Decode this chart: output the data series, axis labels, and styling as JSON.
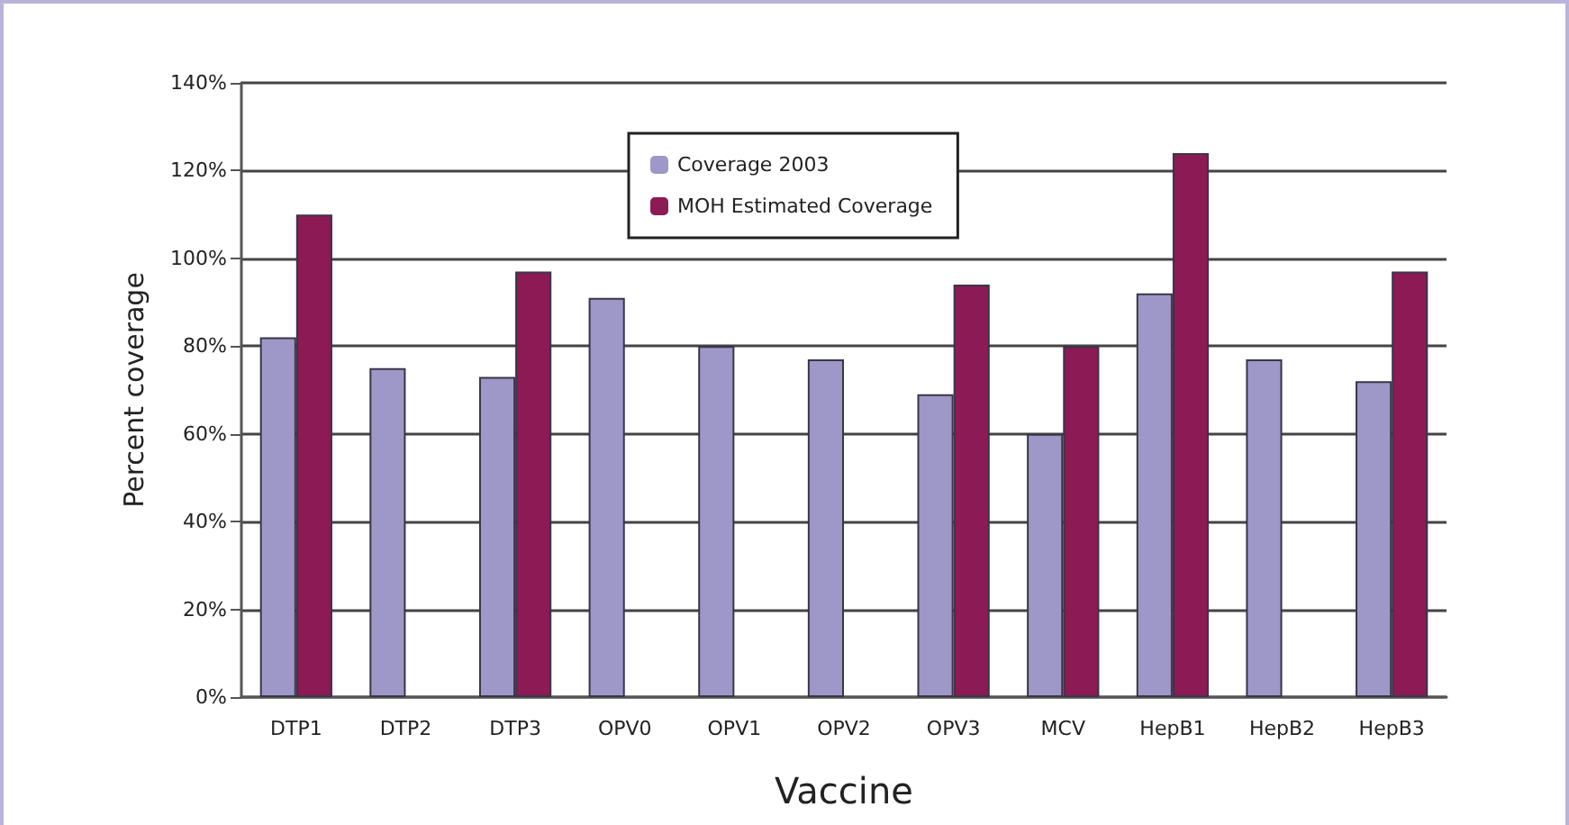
{
  "chart_data": {
    "type": "bar",
    "xlabel": "Vaccine",
    "ylabel": "Percent coverage",
    "categories": [
      "DTP1",
      "DTP2",
      "DTP3",
      "OPV0",
      "OPV1",
      "OPV2",
      "OPV3",
      "MCV",
      "HepB1",
      "HepB2",
      "HepB3"
    ],
    "series": [
      {
        "name": "Coverage 2003",
        "color": "#9e98c8",
        "values": [
          82,
          75,
          73,
          91,
          80,
          77,
          69,
          60,
          92,
          77,
          72
        ]
      },
      {
        "name": "MOH Estimated Coverage",
        "color": "#8b1a55",
        "values": [
          110,
          null,
          97,
          null,
          null,
          null,
          94,
          80,
          124,
          null,
          97
        ]
      }
    ],
    "ylim": [
      0,
      140
    ],
    "yticks": [
      {
        "value": 0,
        "label": "0%"
      },
      {
        "value": 20,
        "label": "20%"
      },
      {
        "value": 40,
        "label": "40%"
      },
      {
        "value": 60,
        "label": "60%"
      },
      {
        "value": 80,
        "label": "80%"
      },
      {
        "value": 100,
        "label": "100%"
      },
      {
        "value": 120,
        "label": "120%"
      },
      {
        "value": 140,
        "label": "140%"
      }
    ],
    "grid": "y",
    "legend": "top"
  }
}
